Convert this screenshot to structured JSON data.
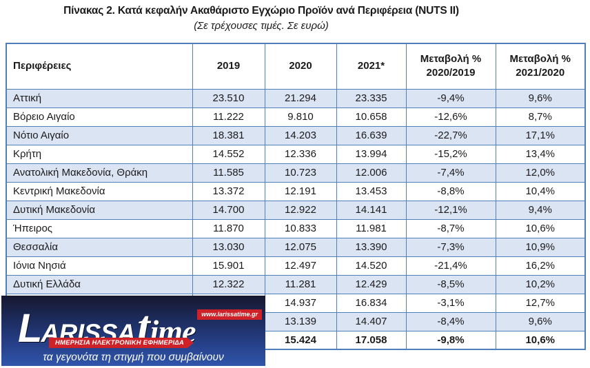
{
  "title": "Πίνακας 2. Κατά κεφαλήν Ακαθάριστο Εγχώριο Προϊόν ανά Περιφέρεια (NUTS II)",
  "subtitle": "(Σε τρέχουσες τιμές. Σε ευρώ)",
  "colors": {
    "table_border": "#4f7fba",
    "row_shading": "#dbe4f3",
    "logo_red": "#cf2128",
    "logo_gradient_top": "#16182e",
    "logo_gradient_bottom": "#3055ab"
  },
  "table": {
    "headers": {
      "region": "Περιφέρειες",
      "y2019": "2019",
      "y2020": "2020",
      "y2021": "2021*",
      "chg1_line1": "Μεταβολή %",
      "chg1_line2": "2020/2019",
      "chg2_line1": "Μεταβολή %",
      "chg2_line2": "2021/2020"
    },
    "rows": [
      {
        "region": "Αττική",
        "y2019": "23.510",
        "y2020": "21.294",
        "y2021": "23.335",
        "chg1": "-9,4%",
        "chg2": "9,6%",
        "shaded": true,
        "bold": false
      },
      {
        "region": "Βόρειο Αιγαίο",
        "y2019": "11.222",
        "y2020": "9.810",
        "y2021": "10.658",
        "chg1": "-12,6%",
        "chg2": "8,7%",
        "shaded": false,
        "bold": false
      },
      {
        "region": "Νότιο Αιγαίο",
        "y2019": "18.381",
        "y2020": "14.203",
        "y2021": "16.639",
        "chg1": "-22,7%",
        "chg2": "17,1%",
        "shaded": true,
        "bold": false
      },
      {
        "region": "Κρήτη",
        "y2019": "14.552",
        "y2020": "12.336",
        "y2021": "13.994",
        "chg1": "-15,2%",
        "chg2": "13,4%",
        "shaded": false,
        "bold": false
      },
      {
        "region": "Ανατολική Μακεδονία, Θράκη",
        "y2019": "11.585",
        "y2020": "10.723",
        "y2021": "12.006",
        "chg1": "-7,4%",
        "chg2": "12,0%",
        "shaded": true,
        "bold": false
      },
      {
        "region": "Κεντρική Μακεδονία",
        "y2019": "13.372",
        "y2020": "12.191",
        "y2021": "13.453",
        "chg1": "-8,8%",
        "chg2": "10,4%",
        "shaded": false,
        "bold": false
      },
      {
        "region": "Δυτική Μακεδονία",
        "y2019": "14.700",
        "y2020": "12.922",
        "y2021": "14.141",
        "chg1": "-12,1%",
        "chg2": "9,4%",
        "shaded": true,
        "bold": false
      },
      {
        "region": "Ήπειρος",
        "y2019": "11.870",
        "y2020": "10.833",
        "y2021": "11.981",
        "chg1": "-8,7%",
        "chg2": "10,6%",
        "shaded": false,
        "bold": false
      },
      {
        "region": "Θεσσαλία",
        "y2019": "13.030",
        "y2020": "12.075",
        "y2021": "13.390",
        "chg1": "-7,3%",
        "chg2": "10,9%",
        "shaded": true,
        "bold": false
      },
      {
        "region": "Ιόνια Νησιά",
        "y2019": "15.901",
        "y2020": "12.497",
        "y2021": "14.520",
        "chg1": "-21,4%",
        "chg2": "16,2%",
        "shaded": false,
        "bold": false
      },
      {
        "region": "Δυτική Ελλάδα",
        "y2019": "12.322",
        "y2020": "11.281",
        "y2021": "12.429",
        "chg1": "-8,5%",
        "chg2": "10,2%",
        "shaded": true,
        "bold": false
      },
      {
        "region": "",
        "y2019": "",
        "y2020": "14.937",
        "y2021": "16.834",
        "chg1": "-3,1%",
        "chg2": "12,7%",
        "shaded": false,
        "bold": false
      },
      {
        "region": "",
        "y2019": "",
        "y2020": "13.139",
        "y2021": "14.407",
        "chg1": "-8,4%",
        "chg2": "9,6%",
        "shaded": true,
        "bold": false
      },
      {
        "region": "",
        "y2019": "",
        "y2020": "15.424",
        "y2021": "17.058",
        "chg1": "-9,8%",
        "chg2": "10,6%",
        "shaded": false,
        "bold": true
      }
    ]
  },
  "watermark": {
    "wordmark_l": "L",
    "wordmark_arissa": "ARISSA",
    "wordmark_t": "t",
    "wordmark_ime": "ime",
    "website": "www.larissatime.gr",
    "banner": "ΗΜΕΡΗΣΙΑ ΗΛΕΚΤΡΟΝΙΚΗ ΕΦΗΜΕΡΙΔΑ",
    "tagline": "τα γεγονότα τη στιγμή που συμβαίνουν"
  }
}
